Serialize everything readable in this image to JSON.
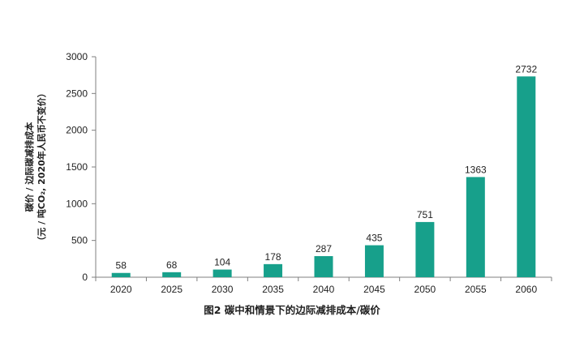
{
  "chart_data": {
    "type": "bar",
    "categories": [
      "2020",
      "2025",
      "2030",
      "2035",
      "2040",
      "2045",
      "2050",
      "2055",
      "2060"
    ],
    "values": [
      58,
      68,
      104,
      178,
      287,
      435,
      751,
      1363,
      2732
    ],
    "ylabel_line1": "碳价 / 边际碳减排成本",
    "ylabel_line2": "（元 / 吨CO₂, 2020年人民币不变价）",
    "ylim": [
      0,
      3000
    ],
    "yticks": [
      0,
      500,
      1000,
      1500,
      2000,
      2500,
      3000
    ],
    "grid": false,
    "bar_color": "#17a08b",
    "show_data_labels": true
  },
  "caption": "图2  碳中和情景下的边际减排成本/碳价"
}
